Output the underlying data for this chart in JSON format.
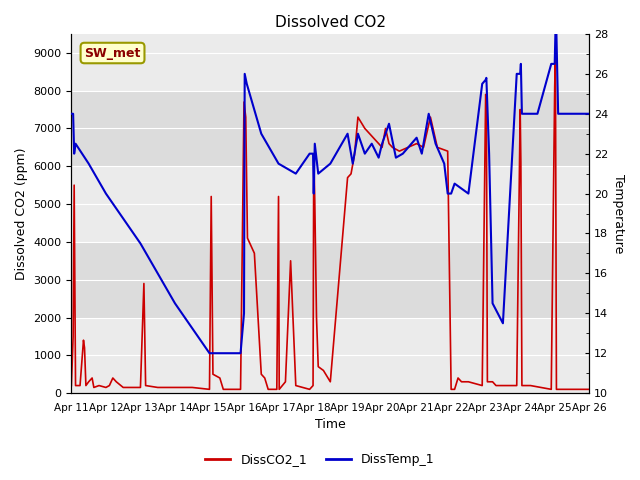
{
  "title": "Dissolved CO2",
  "xlabel": "Time",
  "ylabel_left": "Dissolved CO2 (ppm)",
  "ylabel_right": "Temperature",
  "legend_label1": "DissCO2_1",
  "legend_label2": "DissTemp_1",
  "annotation": "SW_met",
  "ylim_left": [
    0,
    9500
  ],
  "ylim_right": [
    10,
    28
  ],
  "yticks_left": [
    0,
    1000,
    2000,
    3000,
    4000,
    5000,
    6000,
    7000,
    8000,
    9000
  ],
  "yticks_right": [
    10,
    12,
    14,
    16,
    18,
    20,
    22,
    24,
    26,
    28
  ],
  "xtick_labels": [
    "Apr 11",
    "Apr 12",
    "Apr 13",
    "Apr 14",
    "Apr 15",
    "Apr 16",
    "Apr 17",
    "Apr 18",
    "Apr 19",
    "Apr 20",
    "Apr 21",
    "Apr 22",
    "Apr 23",
    "Apr 24",
    "Apr 25",
    "Apr 26"
  ],
  "color_co2": "#cc0000",
  "color_temp": "#0000cc",
  "bg_color": "#f0f0f0",
  "band_dark": "#dcdcdc",
  "band_light": "#ebebeb",
  "annotation_bg": "#ffffcc",
  "annotation_border": "#999900",
  "co2_points": [
    [
      0.0,
      200
    ],
    [
      0.05,
      1500
    ],
    [
      0.08,
      5500
    ],
    [
      0.12,
      200
    ],
    [
      0.25,
      200
    ],
    [
      0.35,
      1400
    ],
    [
      0.38,
      1200
    ],
    [
      0.42,
      200
    ],
    [
      0.5,
      300
    ],
    [
      0.6,
      400
    ],
    [
      0.65,
      150
    ],
    [
      0.8,
      200
    ],
    [
      1.0,
      150
    ],
    [
      1.1,
      200
    ],
    [
      1.2,
      400
    ],
    [
      1.3,
      300
    ],
    [
      1.5,
      150
    ],
    [
      2.0,
      150
    ],
    [
      2.1,
      2900
    ],
    [
      2.15,
      200
    ],
    [
      2.5,
      150
    ],
    [
      3.0,
      150
    ],
    [
      3.2,
      150
    ],
    [
      3.5,
      150
    ],
    [
      4.0,
      100
    ],
    [
      4.05,
      5200
    ],
    [
      4.1,
      500
    ],
    [
      4.3,
      400
    ],
    [
      4.4,
      100
    ],
    [
      4.5,
      100
    ],
    [
      4.9,
      100
    ],
    [
      5.0,
      7700
    ],
    [
      5.05,
      7300
    ],
    [
      5.1,
      4100
    ],
    [
      5.3,
      3700
    ],
    [
      5.5,
      500
    ],
    [
      5.6,
      400
    ],
    [
      5.7,
      100
    ],
    [
      5.95,
      100
    ],
    [
      6.0,
      5200
    ],
    [
      6.02,
      100
    ],
    [
      6.2,
      300
    ],
    [
      6.35,
      3500
    ],
    [
      6.5,
      200
    ],
    [
      6.9,
      100
    ],
    [
      7.0,
      200
    ],
    [
      7.02,
      6300
    ],
    [
      7.05,
      5100
    ],
    [
      7.1,
      2000
    ],
    [
      7.15,
      700
    ],
    [
      7.3,
      600
    ],
    [
      7.5,
      300
    ],
    [
      8.0,
      5700
    ],
    [
      8.1,
      5800
    ],
    [
      8.2,
      6300
    ],
    [
      8.3,
      7300
    ],
    [
      8.5,
      7000
    ],
    [
      9.0,
      6500
    ],
    [
      9.1,
      7000
    ],
    [
      9.2,
      6600
    ],
    [
      9.3,
      6500
    ],
    [
      9.5,
      6400
    ],
    [
      10.0,
      6600
    ],
    [
      10.2,
      6500
    ],
    [
      10.4,
      7300
    ],
    [
      10.6,
      6500
    ],
    [
      10.9,
      6400
    ],
    [
      11.0,
      100
    ],
    [
      11.1,
      100
    ],
    [
      11.2,
      400
    ],
    [
      11.3,
      300
    ],
    [
      11.5,
      300
    ],
    [
      11.9,
      200
    ],
    [
      12.0,
      7900
    ],
    [
      12.02,
      7800
    ],
    [
      12.05,
      300
    ],
    [
      12.2,
      300
    ],
    [
      12.3,
      200
    ],
    [
      12.9,
      200
    ],
    [
      13.0,
      7500
    ],
    [
      13.02,
      6100
    ],
    [
      13.05,
      200
    ],
    [
      13.2,
      200
    ],
    [
      13.3,
      200
    ],
    [
      13.9,
      100
    ],
    [
      14.0,
      8100
    ],
    [
      14.02,
      9000
    ],
    [
      14.05,
      100
    ],
    [
      15.0,
      100
    ]
  ],
  "temp_points": [
    [
      0.0,
      24.0
    ],
    [
      0.05,
      24.0
    ],
    [
      0.08,
      22.0
    ],
    [
      0.12,
      22.5
    ],
    [
      0.5,
      21.5
    ],
    [
      1.0,
      20.0
    ],
    [
      2.0,
      17.5
    ],
    [
      3.0,
      14.5
    ],
    [
      3.8,
      12.5
    ],
    [
      4.0,
      12.0
    ],
    [
      4.2,
      12.0
    ],
    [
      4.9,
      12.0
    ],
    [
      5.0,
      14.0
    ],
    [
      5.02,
      26.0
    ],
    [
      5.08,
      25.5
    ],
    [
      5.5,
      23.0
    ],
    [
      6.0,
      21.5
    ],
    [
      6.5,
      21.0
    ],
    [
      6.9,
      22.0
    ],
    [
      7.0,
      22.0
    ],
    [
      7.02,
      20.0
    ],
    [
      7.05,
      22.5
    ],
    [
      7.15,
      21.0
    ],
    [
      7.5,
      21.5
    ],
    [
      8.0,
      23.0
    ],
    [
      8.15,
      21.5
    ],
    [
      8.3,
      23.0
    ],
    [
      8.5,
      22.0
    ],
    [
      8.7,
      22.5
    ],
    [
      8.9,
      21.8
    ],
    [
      9.0,
      22.5
    ],
    [
      9.2,
      23.5
    ],
    [
      9.4,
      21.8
    ],
    [
      9.6,
      22.0
    ],
    [
      10.0,
      22.8
    ],
    [
      10.15,
      22.0
    ],
    [
      10.35,
      24.0
    ],
    [
      10.55,
      22.5
    ],
    [
      10.8,
      21.5
    ],
    [
      10.9,
      20.0
    ],
    [
      11.0,
      20.0
    ],
    [
      11.1,
      20.5
    ],
    [
      11.5,
      20.0
    ],
    [
      11.9,
      25.5
    ],
    [
      12.0,
      25.7
    ],
    [
      12.02,
      25.8
    ],
    [
      12.1,
      22.0
    ],
    [
      12.2,
      14.5
    ],
    [
      12.5,
      13.5
    ],
    [
      12.9,
      26.0
    ],
    [
      13.0,
      26.0
    ],
    [
      13.02,
      26.5
    ],
    [
      13.05,
      24.0
    ],
    [
      13.2,
      24.0
    ],
    [
      13.5,
      24.0
    ],
    [
      13.9,
      26.5
    ],
    [
      14.0,
      26.5
    ],
    [
      14.02,
      28.0
    ],
    [
      14.05,
      28.0
    ],
    [
      14.1,
      24.0
    ],
    [
      14.5,
      24.0
    ],
    [
      15.0,
      24.0
    ]
  ]
}
